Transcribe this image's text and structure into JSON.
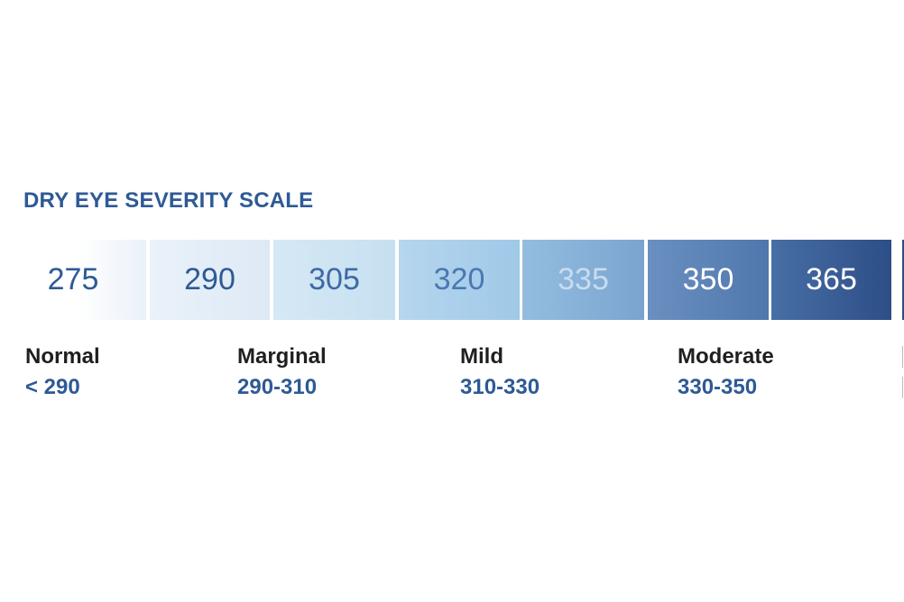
{
  "title": "DRY EYE SEVERITY SCALE",
  "scale": {
    "cells": [
      {
        "value": "275",
        "bg": "linear-gradient(to right, #ffffff 0%, #ffffff 55%, #e9f1f9 100%)",
        "fg": "#2d5a95"
      },
      {
        "value": "290",
        "bg": "linear-gradient(to right, #eaf2fa, #dde9f5)",
        "fg": "#2d5a95"
      },
      {
        "value": "305",
        "bg": "linear-gradient(to right, #d6e8f5, #c6e0f1)",
        "fg": "#3d6aa5"
      },
      {
        "value": "320",
        "bg": "linear-gradient(to right, #b6d6ee, #9fc9e8)",
        "fg": "#4a78b2"
      },
      {
        "value": "335",
        "bg": "linear-gradient(to right, #93bddf, #7aa4cf)",
        "fg": "#c9dcef"
      },
      {
        "value": "350",
        "bg": "linear-gradient(to right, #6a90c1, #5077ac)",
        "fg": "#ffffff"
      },
      {
        "value": "365",
        "bg": "linear-gradient(to right, #486ea6, #2d4e86)",
        "fg": "#ffffff"
      }
    ]
  },
  "categories": [
    {
      "name": "Normal",
      "range": "< 290"
    },
    {
      "name": "Marginal",
      "range": "290-310"
    },
    {
      "name": "Mild",
      "range": "310-330"
    },
    {
      "name": "Moderate",
      "range": "330-350"
    }
  ]
}
